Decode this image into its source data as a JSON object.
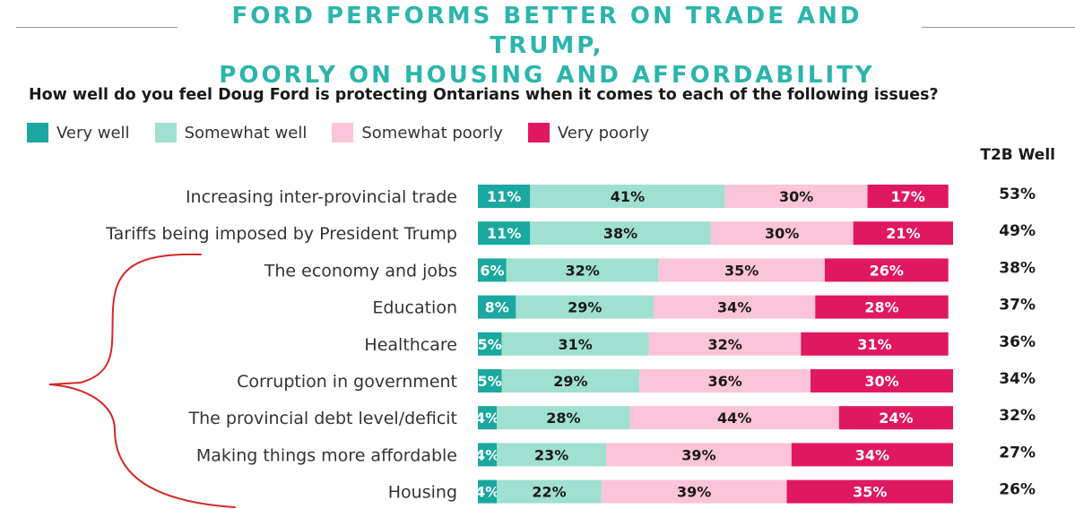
{
  "header": {
    "title_line1": "FORD PERFORMS BETTER ON TRADE AND TRUMP,",
    "title_line2": "POORLY ON HOUSING AND AFFORDABILITY",
    "question": "How well do you feel Doug Ford is protecting Ontarians when it comes to each of the following issues?",
    "t2b_header": "T2B Well"
  },
  "colors": {
    "very_well": "#1aa8a0",
    "somewhat_well": "#9fe0d0",
    "somewhat_poorly": "#fbc4d8",
    "very_poorly": "#e0185f",
    "title": "#2bb5ad",
    "annotation_brace": "#d42828"
  },
  "legend": [
    {
      "label": "Very well",
      "color": "#1aa8a0"
    },
    {
      "label": "Somewhat well",
      "color": "#9fe0d0"
    },
    {
      "label": "Somewhat poorly",
      "color": "#fbc4d8"
    },
    {
      "label": "Very poorly",
      "color": "#e0185f"
    }
  ],
  "chart_data": {
    "type": "bar",
    "orientation": "horizontal",
    "stacked": true,
    "title": "FORD PERFORMS BETTER ON TRADE AND TRUMP, POORLY ON HOUSING AND AFFORDABILITY",
    "subtitle": "How well do you feel Doug Ford is protecting Ontarians when it comes to each of the following issues?",
    "categories": [
      "Increasing inter-provincial trade",
      "Tariffs being imposed by President Trump",
      "The economy and jobs",
      "Education",
      "Healthcare",
      "Corruption in government",
      "The provincial debt level/deficit",
      "Making things more affordable",
      "Housing"
    ],
    "series": [
      {
        "name": "Very well",
        "values": [
          11,
          11,
          6,
          8,
          5,
          5,
          4,
          4,
          4
        ]
      },
      {
        "name": "Somewhat well",
        "values": [
          41,
          38,
          32,
          29,
          31,
          29,
          28,
          23,
          22
        ]
      },
      {
        "name": "Somewhat poorly",
        "values": [
          30,
          30,
          35,
          34,
          32,
          36,
          44,
          39,
          39
        ]
      },
      {
        "name": "Very poorly",
        "values": [
          17,
          21,
          26,
          28,
          31,
          30,
          24,
          34,
          35
        ]
      }
    ],
    "t2b_well": {
      "label": "T2B Well",
      "values": [
        "53%",
        "49%",
        "38%",
        "37%",
        "36%",
        "34%",
        "32%",
        "27%",
        "26%"
      ]
    },
    "legend_position": "top-left",
    "grid": false
  }
}
